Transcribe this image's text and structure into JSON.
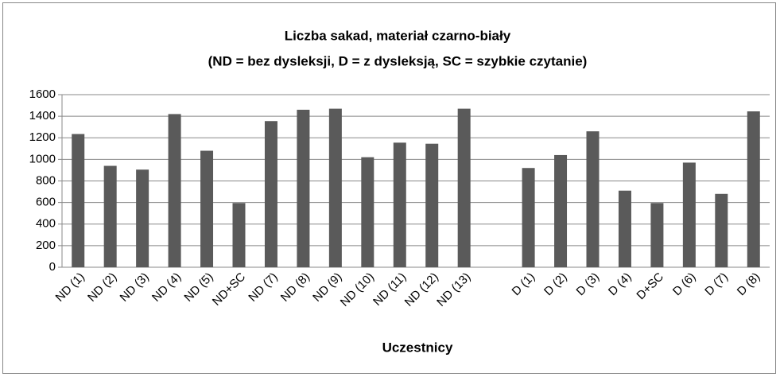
{
  "chart_data": {
    "type": "bar",
    "title": [
      "Liczba sakad,  materiał czarno-biały",
      "(ND = bez dysleksji, D =  z dysleksją, SC = szybkie czytanie)"
    ],
    "x_label": "Uczestnicy",
    "categories": [
      "ND (1)",
      "ND (2)",
      "ND (3)",
      "ND (4)",
      "ND (5)",
      "ND+SC",
      "ND (7)",
      "ND (8)",
      "ND (9)",
      "ND (10)",
      "ND (11)",
      "ND (12)",
      "ND (13)",
      null,
      "D (1)",
      "D (2)",
      "D (3)",
      "D (4)",
      "D+SC",
      "D (6)",
      "D (7)",
      "D (8)"
    ],
    "values": [
      1235,
      940,
      905,
      1420,
      1080,
      595,
      1355,
      1460,
      1470,
      1020,
      1155,
      1145,
      1470,
      null,
      920,
      1040,
      1260,
      710,
      595,
      970,
      680,
      1445
    ],
    "color": "#5a5a5a",
    "ylim": [
      0,
      1600
    ],
    "yticks": [
      0,
      200,
      400,
      600,
      800,
      1000,
      1200,
      1400,
      1600
    ],
    "grid": true
  }
}
